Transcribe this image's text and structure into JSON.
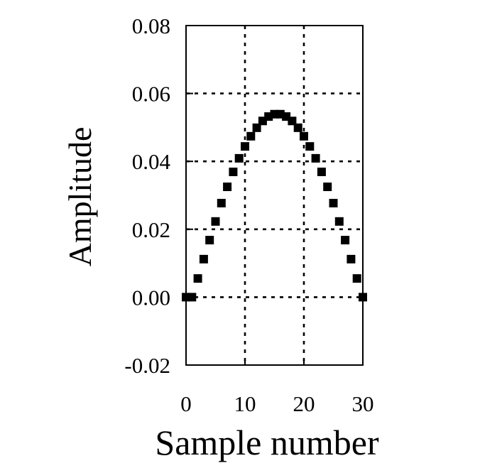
{
  "chart_data": {
    "type": "scatter",
    "xlabel": "Sample number",
    "ylabel": "Amplitude",
    "xlim": [
      0,
      30
    ],
    "ylim": [
      -0.02,
      0.08
    ],
    "x_ticks": [
      "0",
      "10",
      "20",
      "30"
    ],
    "y_ticks": [
      "-0.02",
      "0.00",
      "0.02",
      "0.04",
      "0.06",
      "0.08"
    ],
    "grid": "dotted, at x = 10, 20 and y = 0.00 – 0.06",
    "series": [
      {
        "x": [
          0,
          1,
          2,
          3,
          4,
          5,
          6,
          7,
          8,
          9,
          10,
          11,
          12,
          13,
          14,
          15,
          16,
          17,
          18,
          19,
          20,
          21,
          22,
          23,
          24,
          25,
          26,
          27,
          28,
          29,
          30
        ],
        "y": [
          0.0,
          0.0,
          0.0055,
          0.0112,
          0.0168,
          0.0223,
          0.0277,
          0.0325,
          0.0369,
          0.0409,
          0.0444,
          0.0474,
          0.0499,
          0.0519,
          0.0532,
          0.0539,
          0.0539,
          0.0532,
          0.0519,
          0.0499,
          0.0474,
          0.0444,
          0.0409,
          0.0369,
          0.0325,
          0.0277,
          0.0223,
          0.0168,
          0.0112,
          0.0055,
          0.0
        ]
      }
    ],
    "marker": "square",
    "color": "#000000"
  }
}
